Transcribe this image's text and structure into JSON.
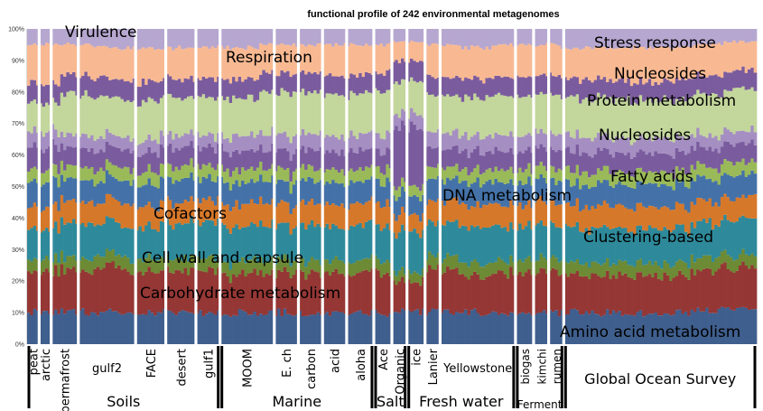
{
  "chart_data": {
    "type": "bar",
    "stacked": true,
    "title": "functional profile of 242 environmental metagenomes",
    "ylim": [
      0,
      100
    ],
    "yticks": [
      "0%",
      "10%",
      "20%",
      "30%",
      "40%",
      "50%",
      "60%",
      "70%",
      "80%",
      "90%",
      "100%"
    ],
    "sample_count": 242,
    "colors": {
      "amino_acid": "#3f5f8e",
      "carbohydrate": "#953735",
      "cell_wall": "#6d8a35",
      "clustering": "#2e8a9b",
      "cofactors": "#d6782a",
      "dna": "#4472a8",
      "misc": "#9aba59",
      "nucleosides": "#7a5c9e",
      "protein": "#c3d69b",
      "stress": "#f8b992",
      "virulence": "#b6a7d0",
      "regulation": "#cfc5e0",
      "divider": "#ffffff"
    },
    "categories_bottom_to_top": [
      "Amino acid metabolism",
      "Carbohydrate metabolism",
      "Cell wall and capsule",
      "Clustering-based",
      "Cofactors",
      "DNA metabolism",
      "Fatty acids",
      "Nucleosides",
      "Respiration",
      "Protein metabolism",
      "Nucleosides",
      "Stress response",
      "Virulence"
    ],
    "series": [
      {
        "name": "Amino acid metabolism",
        "values": [
          10,
          10,
          10,
          10,
          10,
          10,
          10,
          10,
          10,
          10,
          10,
          10,
          10,
          10,
          10,
          10,
          10,
          10,
          10,
          10,
          11,
          11
        ]
      },
      {
        "name": "Carbohydrate metabolism",
        "values": [
          13,
          13,
          14,
          13,
          13,
          13,
          12,
          13,
          13,
          12,
          13,
          9,
          13,
          12,
          13,
          13,
          12,
          12,
          12,
          12,
          13,
          13
        ]
      },
      {
        "name": "Cell wall and capsule",
        "values": [
          4,
          4,
          4,
          4,
          4,
          4,
          4,
          4,
          4,
          4,
          4,
          3,
          4,
          4,
          4,
          4,
          4,
          4,
          4,
          4,
          4,
          4
        ]
      },
      {
        "name": "Clustering-based",
        "values": [
          10,
          11,
          10,
          10,
          11,
          11,
          11,
          11,
          11,
          11,
          11,
          12,
          11,
          11,
          11,
          11,
          11,
          11,
          11,
          11,
          11,
          12
        ]
      },
      {
        "name": "Cofactors",
        "values": [
          7,
          7,
          7,
          7,
          7,
          7,
          7,
          7,
          7,
          7,
          7,
          5,
          7,
          7,
          7,
          7,
          7,
          7,
          7,
          7,
          7,
          7
        ]
      },
      {
        "name": "DNA metabolism",
        "values": [
          8,
          7,
          7,
          7,
          7,
          7,
          7,
          7,
          7,
          7,
          7,
          6,
          7,
          7,
          7,
          7,
          7,
          7,
          7,
          7,
          7,
          7
        ]
      },
      {
        "name": "Fatty acids",
        "values": [
          4,
          4,
          4,
          4,
          4,
          4,
          4,
          4,
          4,
          4,
          4,
          3,
          4,
          4,
          4,
          4,
          4,
          4,
          4,
          4,
          4,
          4
        ]
      },
      {
        "name": "Nucleosides",
        "values": [
          7,
          6,
          6,
          6,
          6,
          6,
          6,
          6,
          6,
          6,
          6,
          18,
          6,
          6,
          6,
          6,
          6,
          6,
          6,
          6,
          6,
          6
        ]
      },
      {
        "name": "Respiration",
        "values": [
          5,
          4,
          4,
          4,
          4,
          4,
          5,
          5,
          5,
          5,
          5,
          4,
          5,
          5,
          5,
          5,
          5,
          5,
          5,
          5,
          4,
          4
        ]
      },
      {
        "name": "Protein metabolism",
        "values": [
          9,
          13,
          12,
          12,
          12,
          12,
          12,
          13,
          13,
          13,
          13,
          10,
          12,
          12,
          12,
          12,
          12,
          12,
          12,
          12,
          13,
          13
        ]
      },
      {
        "name": "Nucleosides",
        "values": [
          6,
          6,
          6,
          6,
          6,
          6,
          6,
          6,
          6,
          6,
          6,
          6,
          6,
          6,
          6,
          6,
          6,
          6,
          6,
          6,
          6,
          6
        ]
      },
      {
        "name": "Stress response",
        "values": [
          12,
          10,
          10,
          11,
          10,
          10,
          10,
          9,
          9,
          10,
          9,
          6,
          10,
          10,
          10,
          10,
          10,
          10,
          11,
          11,
          10,
          9
        ]
      },
      {
        "name": "Virulence",
        "values": [
          5,
          5,
          6,
          6,
          6,
          6,
          6,
          5,
          5,
          5,
          5,
          4,
          5,
          6,
          5,
          5,
          6,
          6,
          6,
          6,
          5,
          4
        ]
      }
    ],
    "annotations": [
      {
        "text": "Virulence"
      },
      {
        "text": "Respiration"
      },
      {
        "text": "Cofactors"
      },
      {
        "text": "Cell wall and capsule"
      },
      {
        "text": "Carbohydrate metabolism"
      },
      {
        "text": "DNA metabolism"
      },
      {
        "text": "Stress response"
      },
      {
        "text": "Nucleosides"
      },
      {
        "text": "Protein metabolism"
      },
      {
        "text": "Nucleosides"
      },
      {
        "text": "Fatty acids"
      },
      {
        "text": "Clustering-based"
      },
      {
        "text": "Amino acid metabolism"
      }
    ],
    "sample_groups": [
      {
        "label": "peat",
        "range": [
          0,
          4
        ]
      },
      {
        "label": "arctic",
        "range": [
          4,
          8
        ]
      },
      {
        "label": "permafrost",
        "range": [
          8,
          17
        ]
      },
      {
        "label": "gulf2",
        "range": [
          17,
          36
        ]
      },
      {
        "label": "FACE",
        "range": [
          36,
          46
        ]
      },
      {
        "label": "desert",
        "range": [
          46,
          56
        ]
      },
      {
        "label": "gulf1",
        "range": [
          56,
          64
        ]
      },
      {
        "label": "MOOM",
        "range": [
          64,
          82
        ]
      },
      {
        "label": "E. ch",
        "range": [
          82,
          90
        ]
      },
      {
        "label": "carbon",
        "range": [
          90,
          98
        ]
      },
      {
        "label": "acid",
        "range": [
          98,
          106
        ]
      },
      {
        "label": "aloha",
        "range": [
          106,
          115
        ]
      },
      {
        "label": "Ace",
        "range": [
          115,
          121
        ]
      },
      {
        "label": "Organic",
        "range": [
          121,
          126
        ]
      },
      {
        "label": "ice",
        "range": [
          126,
          132
        ]
      },
      {
        "label": "Lanier",
        "range": [
          132,
          137
        ]
      },
      {
        "label": "Yellowstone",
        "range": [
          137,
          162
        ]
      },
      {
        "label": "biogas",
        "range": [
          162,
          168
        ]
      },
      {
        "label": "kimchi",
        "range": [
          168,
          173
        ]
      },
      {
        "label": "rumen",
        "range": [
          173,
          178
        ]
      },
      {
        "label": "Global Ocean Survey",
        "range": [
          178,
          242
        ]
      }
    ],
    "environment_groups": [
      {
        "label": "Soils",
        "range": [
          0,
          64
        ]
      },
      {
        "label": "Marine",
        "range": [
          64,
          115
        ]
      },
      {
        "label": "Salt",
        "range": [
          115,
          126
        ]
      },
      {
        "label": "Fresh water",
        "range": [
          126,
          162
        ]
      },
      {
        "label": "Ferment",
        "range": [
          162,
          178
        ]
      }
    ]
  }
}
